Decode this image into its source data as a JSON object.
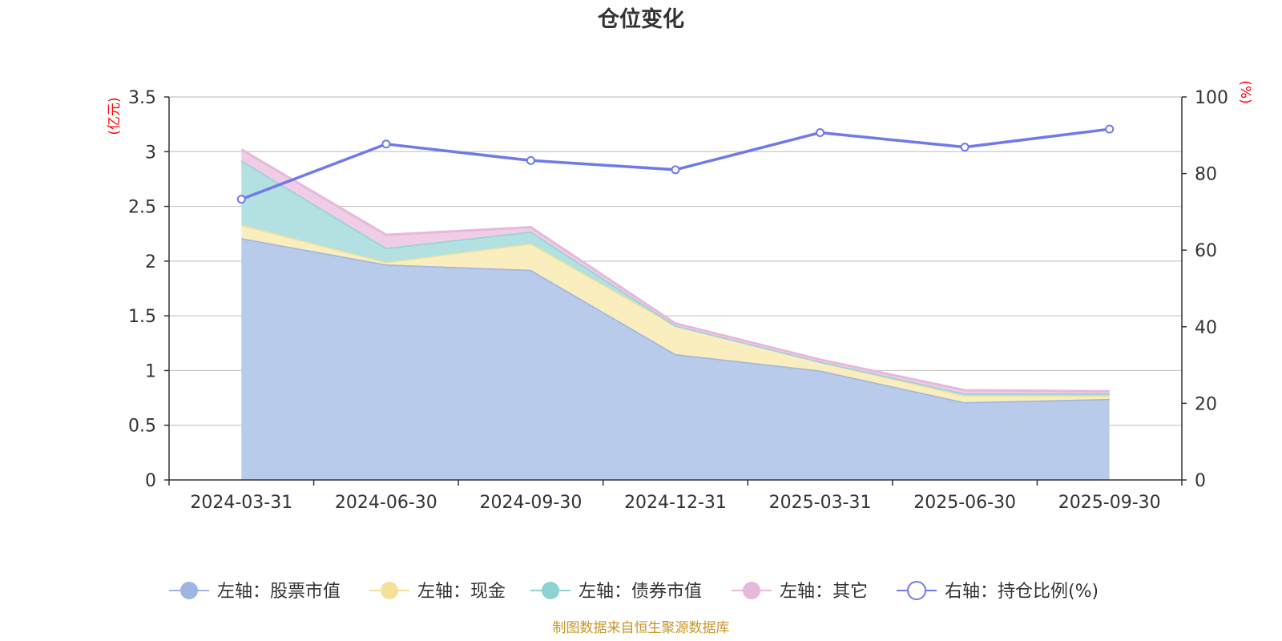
{
  "chart_data": {
    "type": "area",
    "title": "仓位变化",
    "categories": [
      "2024-03-31",
      "2024-06-30",
      "2024-09-30",
      "2024-12-31",
      "2025-03-31",
      "2025-06-30",
      "2025-09-30"
    ],
    "left_axis": {
      "unit": "(亿元)",
      "ylim": [
        0,
        3.5
      ],
      "ticks": [
        "0",
        "0.5",
        "1",
        "1.5",
        "2",
        "2.5",
        "3",
        "3.5"
      ],
      "tick_values": [
        0,
        0.5,
        1,
        1.5,
        2,
        2.5,
        3,
        3.5
      ]
    },
    "right_axis": {
      "unit": "(%)",
      "ylim": [
        0,
        100
      ],
      "ticks": [
        "0",
        "20",
        "40",
        "60",
        "80",
        "100"
      ],
      "tick_values": [
        0,
        20,
        40,
        60,
        80,
        100
      ]
    },
    "stacked_series": [
      {
        "name": "左轴：股票市值",
        "color": "#9db5e0",
        "fill": "#b8cbea",
        "values": [
          2.21,
          1.97,
          1.92,
          1.15,
          1.0,
          0.71,
          0.74
        ]
      },
      {
        "name": "左轴：现金",
        "color": "#f5e09a",
        "fill": "#faedbe",
        "values": [
          0.12,
          0.02,
          0.24,
          0.26,
          0.08,
          0.06,
          0.03
        ]
      },
      {
        "name": "左轴：债券市值",
        "color": "#8ed3d3",
        "fill": "#b3e1e1",
        "values": [
          0.59,
          0.13,
          0.11,
          0.0,
          0.0,
          0.02,
          0.02
        ]
      },
      {
        "name": "左轴：其它",
        "color": "#e6b8dc",
        "fill": "#efcde6",
        "values": [
          0.1,
          0.12,
          0.04,
          0.02,
          0.02,
          0.03,
          0.02
        ]
      }
    ],
    "line_series": {
      "name": "右轴：持仓比例(%)",
      "color": "#7079e8",
      "values": [
        73.3,
        87.7,
        83.4,
        81.0,
        90.7,
        86.9,
        91.6
      ]
    },
    "legend_position": "bottom",
    "source": "制图数据来自恒生聚源数据库"
  }
}
